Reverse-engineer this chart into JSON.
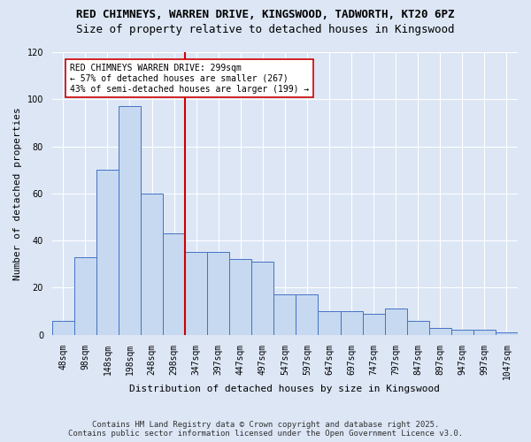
{
  "title_line1": "RED CHIMNEYS, WARREN DRIVE, KINGSWOOD, TADWORTH, KT20 6PZ",
  "title_line2": "Size of property relative to detached houses in Kingswood",
  "xlabel": "Distribution of detached houses by size in Kingswood",
  "ylabel": "Number of detached properties",
  "bar_labels": [
    "48sqm",
    "98sqm",
    "148sqm",
    "198sqm",
    "248sqm",
    "298sqm",
    "347sqm",
    "397sqm",
    "447sqm",
    "497sqm",
    "547sqm",
    "597sqm",
    "647sqm",
    "697sqm",
    "747sqm",
    "797sqm",
    "847sqm",
    "897sqm",
    "947sqm",
    "997sqm",
    "1047sqm"
  ],
  "bar_values": [
    6,
    33,
    70,
    97,
    60,
    43,
    35,
    35,
    32,
    31,
    17,
    17,
    10,
    10,
    9,
    11,
    6,
    3,
    2,
    2,
    1
  ],
  "bar_color": "#c6d9f0",
  "bar_edge_color": "#4472c4",
  "vline_x": 5.5,
  "vline_color": "#cc0000",
  "annotation_text": "RED CHIMNEYS WARREN DRIVE: 299sqm\n← 57% of detached houses are smaller (267)\n43% of semi-detached houses are larger (199) →",
  "annotation_box_color": "#ffffff",
  "annotation_box_edge": "#cc0000",
  "ylim": [
    0,
    120
  ],
  "yticks": [
    0,
    20,
    40,
    60,
    80,
    100,
    120
  ],
  "background_color": "#dce6f5",
  "footer_line1": "Contains HM Land Registry data © Crown copyright and database right 2025.",
  "footer_line2": "Contains public sector information licensed under the Open Government Licence v3.0.",
  "grid_color": "#ffffff",
  "title_fontsize": 9,
  "subtitle_fontsize": 9,
  "axis_label_fontsize": 8,
  "tick_fontsize": 7,
  "annotation_fontsize": 7,
  "footer_fontsize": 6.5
}
